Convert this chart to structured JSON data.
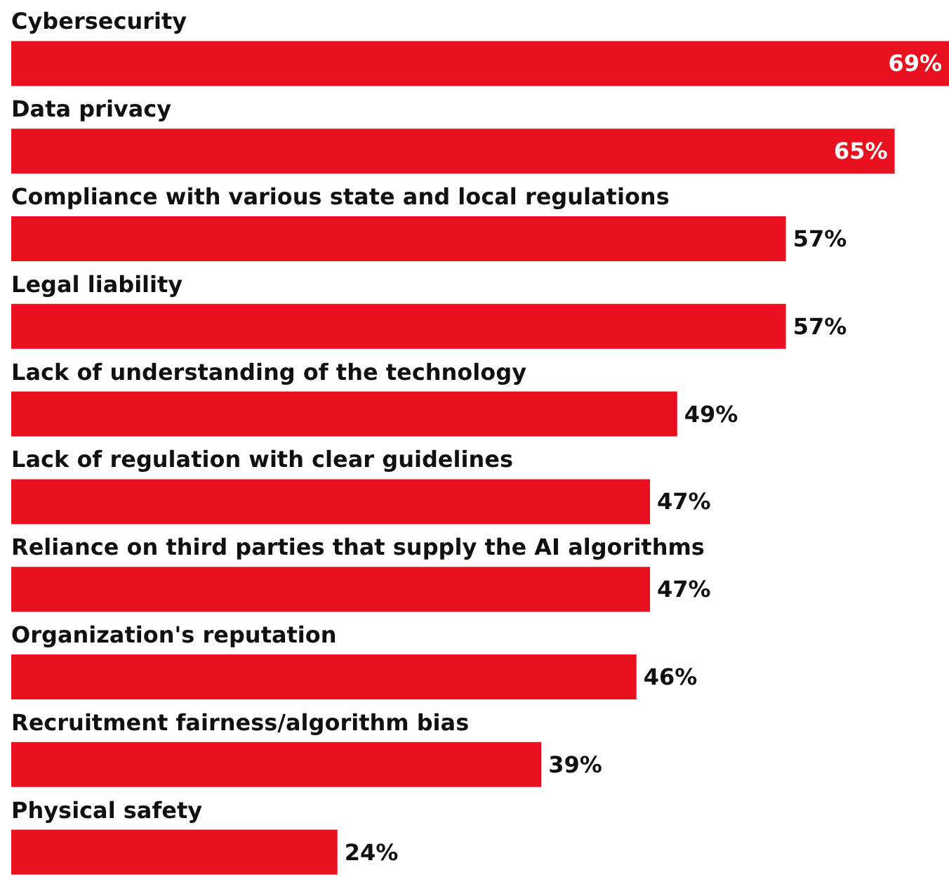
{
  "chart_data": {
    "type": "bar",
    "orientation": "horizontal",
    "tick_labels": "y",
    "categories": [
      "Cybersecurity",
      "Data privacy",
      "Compliance with various state and local regulations",
      "Legal liability",
      "Lack of understanding of the technology",
      "Lack of regulation with clear guidelines",
      "Reliance on third parties that supply the AI algorithms",
      "Organization's reputation",
      "Recruitment fairness/algorithm bias",
      "Physical safety"
    ],
    "values": [
      69,
      65,
      57,
      57,
      49,
      47,
      47,
      46,
      39,
      24
    ],
    "value_labels": [
      "69%",
      "65%",
      "57%",
      "57%",
      "49%",
      "47%",
      "47%",
      "46%",
      "39%",
      "24%"
    ],
    "color": "#e8101f"
  }
}
